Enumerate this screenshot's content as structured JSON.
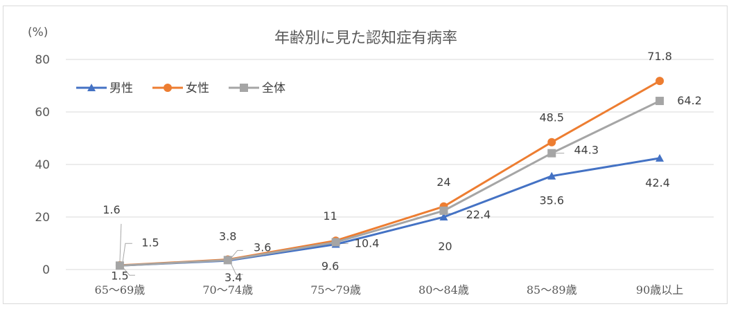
{
  "chart_data": {
    "type": "line",
    "title": "年齢別に見た認知症有病率",
    "ylabel": "(%)",
    "xlabel": "",
    "categories": [
      "65～69歳",
      "70～74歳",
      "75～79歳",
      "80～84歳",
      "85～89歳",
      "90歳以上"
    ],
    "ylim": [
      0,
      80
    ],
    "yticks": [
      0,
      20,
      40,
      60,
      80
    ],
    "grid": true,
    "legend_position": "top-left",
    "series": [
      {
        "name": "男性",
        "values": [
          1.5,
          3.4,
          9.6,
          20,
          35.6,
          42.4
        ],
        "color": "#4472c4",
        "marker": "triangle"
      },
      {
        "name": "女性",
        "values": [
          1.6,
          3.8,
          11,
          24,
          48.5,
          71.8
        ],
        "color": "#ed7d31",
        "marker": "circle"
      },
      {
        "name": "全体",
        "values": [
          1.5,
          3.6,
          10.4,
          22.4,
          44.3,
          64.2
        ],
        "color": "#a5a5a5",
        "marker": "square"
      }
    ]
  }
}
